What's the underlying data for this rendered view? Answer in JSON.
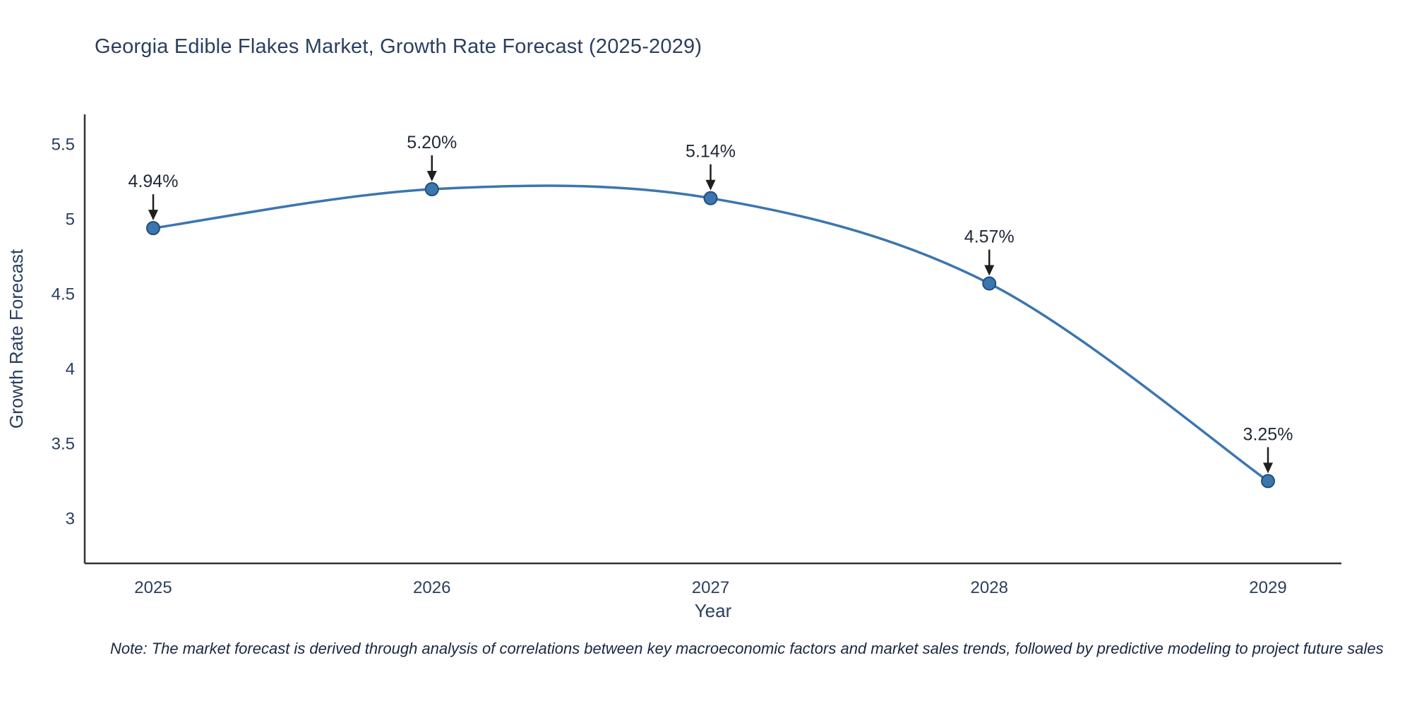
{
  "note": "Note: The market forecast is derived through analysis of correlations between key macroeconomic factors and market sales trends, followed by predictive modeling to project future sales",
  "chart_data": {
    "type": "line",
    "title": "Georgia Edible Flakes Market, Growth Rate Forecast (2025-2029)",
    "xlabel": "Year",
    "ylabel": "Growth Rate Forecast",
    "x": [
      2025,
      2026,
      2027,
      2028,
      2029
    ],
    "values": [
      4.94,
      5.2,
      5.14,
      4.57,
      3.25
    ],
    "labels": [
      "4.94%",
      "5.20%",
      "5.14%",
      "4.57%",
      "3.25%"
    ],
    "ylim": [
      2.7,
      5.7
    ],
    "yticks": [
      3,
      3.5,
      4,
      4.5,
      5,
      5.5
    ],
    "line_shape": "spline",
    "grid": false,
    "legend": "none",
    "colors": {
      "line": "#3b76af",
      "marker": "#3b76af",
      "marker_edge": "#234f79",
      "axis": "#333333",
      "text": "#2a3f5f",
      "annotation": "#1f1f1f"
    }
  }
}
